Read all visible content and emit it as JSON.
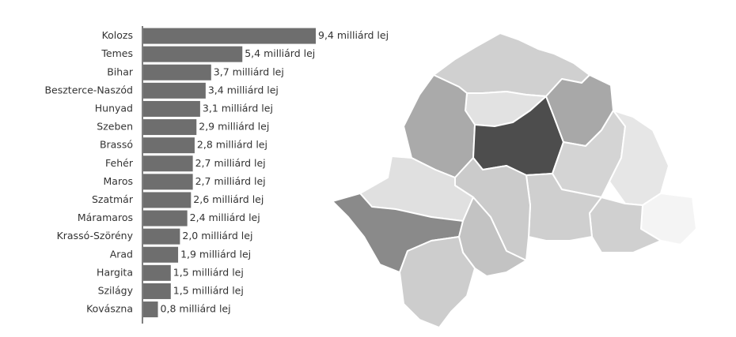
{
  "chart_data": {
    "type": "bar",
    "orientation": "horizontal",
    "color": "#6e6e6e",
    "categories": [
      "Kolozs",
      "Temes",
      "Bihar",
      "Beszterce-Naszód",
      "Hunyad",
      "Szeben",
      "Brassó",
      "Fehér",
      "Maros",
      "Szatmár",
      "Máramaros",
      "Krassó-Szörény",
      "Arad",
      "Hargita",
      "Szilágy",
      "Kovászna"
    ],
    "values": [
      9.4,
      5.4,
      3.7,
      3.4,
      3.1,
      2.9,
      2.8,
      2.7,
      2.7,
      2.6,
      2.4,
      2.0,
      1.9,
      1.5,
      1.5,
      0.8
    ],
    "value_labels": [
      "9,4 milliárd lej",
      "5,4 milliárd lej",
      "3,7 milliárd lej",
      "3,4 milliárd lej",
      "3,1 milliárd lej",
      "2,9 milliárd lej",
      "2,8 milliárd lej",
      "2,7 milliárd lej",
      "2,7 milliárd lej",
      "2,6 milliárd lej",
      "2,4 milliárd lej",
      "2,0 milliárd lej",
      "1,9 milliárd lej",
      "1,5 milliárd lej",
      "1,5 milliárd lej",
      "0,8 milliárd lej"
    ]
  }
}
